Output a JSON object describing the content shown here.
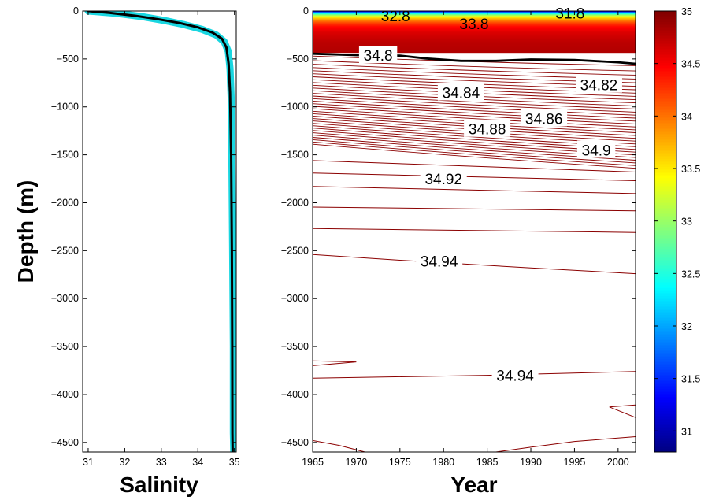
{
  "chart_data": [
    {
      "type": "line",
      "xlabel": "Salinity",
      "ylabel": "Depth (m)",
      "xlim": [
        30.85,
        35.05
      ],
      "ylim": [
        -4600,
        0
      ],
      "xticks": [
        "31",
        "32",
        "33",
        "34",
        "35"
      ],
      "yticks": [
        "0",
        "−500",
        "−1000",
        "−1500",
        "−2000",
        "−2500",
        "−3000",
        "−3500",
        "−4000",
        "−4500"
      ],
      "grid": false,
      "series": [
        {
          "style": "envelope",
          "color": "#19d6e0",
          "x": [
            31.0,
            31.8,
            32.5,
            33.1,
            33.6,
            34.1,
            34.5,
            34.72,
            34.83,
            34.88,
            34.91,
            34.93,
            34.95,
            34.97,
            34.97,
            34.98
          ],
          "y": [
            0,
            -25,
            -60,
            -100,
            -140,
            -190,
            -250,
            -320,
            -420,
            -600,
            -900,
            -1500,
            -2500,
            -3500,
            -4400,
            -4590
          ]
        },
        {
          "style": "mean",
          "color": "#000000",
          "x": [
            31.0,
            31.6,
            32.3,
            32.9,
            33.5,
            34.0,
            34.4,
            34.66,
            34.78,
            34.84,
            34.88,
            34.91,
            34.93,
            34.94,
            34.945,
            34.95
          ],
          "y": [
            0,
            -20,
            -50,
            -85,
            -125,
            -170,
            -225,
            -290,
            -380,
            -550,
            -850,
            -1500,
            -2500,
            -3500,
            -4400,
            -4590
          ]
        }
      ]
    },
    {
      "type": "heatmap",
      "xlabel": "Year",
      "xlim": [
        1965,
        2002
      ],
      "ylim": [
        -4600,
        0
      ],
      "xticks": [
        "1965",
        "1970",
        "1975",
        "1980",
        "1985",
        "1990",
        "1995",
        "2000"
      ],
      "yticks": [
        "0",
        "−500",
        "−1000",
        "−1500",
        "−2000",
        "−2500",
        "−3000",
        "−3500",
        "−4000",
        "−4500"
      ],
      "colormap": "jet",
      "clim": [
        30.8,
        35
      ],
      "surface_bands": [
        {
          "depth": 0,
          "value": 31.3
        },
        {
          "depth": -15,
          "value": 32.1
        },
        {
          "depth": -35,
          "value": 32.9
        },
        {
          "depth": -55,
          "value": 33.4
        },
        {
          "depth": -75,
          "value": 33.7
        },
        {
          "depth": -95,
          "value": 33.95
        },
        {
          "depth": -120,
          "value": 34.2
        },
        {
          "depth": -160,
          "value": 34.45
        },
        {
          "depth": -220,
          "value": 34.62
        },
        {
          "depth": -320,
          "value": 34.75
        },
        {
          "depth": -430,
          "value": 34.8
        }
      ],
      "contour_labels": [
        {
          "text": "32.8",
          "year": 1974.5,
          "depth": -50
        },
        {
          "text": "33.8",
          "year": 1983.5,
          "depth": -130
        },
        {
          "text": "31.8",
          "year": 1994.5,
          "depth": -20
        },
        {
          "text": "34.8",
          "year": 1972.5,
          "depth": -460
        },
        {
          "text": "34.84",
          "year": 1982,
          "depth": -850
        },
        {
          "text": "34.82",
          "year": 1997.8,
          "depth": -770
        },
        {
          "text": "34.86",
          "year": 1991.5,
          "depth": -1120
        },
        {
          "text": "34.88",
          "year": 1985,
          "depth": -1230
        },
        {
          "text": "34.9",
          "year": 1997.5,
          "depth": -1450
        },
        {
          "text": "34.92",
          "year": 1980,
          "depth": -1750
        },
        {
          "text": "34.94",
          "year": 1979.5,
          "depth": -2610
        },
        {
          "text": "34.94",
          "year": 1988.2,
          "depth": -3800
        }
      ],
      "highlight_contour": {
        "value": "34.8",
        "color": "#000000",
        "years": [
          1965,
          1970,
          1975,
          1978,
          1982,
          1986,
          1990,
          1995,
          2000,
          2002
        ],
        "depths": [
          -445,
          -460,
          -465,
          -495,
          -520,
          -520,
          -505,
          -510,
          -535,
          -550
        ]
      },
      "contour_color": "#8b0000",
      "contours_upper": {
        "count": 34,
        "left_range": [
          -470,
          -1390
        ],
        "right_range": [
          -570,
          -1640
        ]
      },
      "contours_deep": [
        {
          "years": [
            1965,
            2002
          ],
          "depths": [
            -1560,
            -1680
          ]
        },
        {
          "years": [
            1965,
            2002
          ],
          "depths": [
            -1690,
            -1770
          ]
        },
        {
          "years": [
            1965,
            2002
          ],
          "depths": [
            -1830,
            -1905
          ]
        },
        {
          "years": [
            1965,
            2002
          ],
          "depths": [
            -2045,
            -2085
          ]
        },
        {
          "years": [
            1965,
            2002
          ],
          "depths": [
            -2270,
            -2310
          ]
        },
        {
          "years": [
            1965,
            1975,
            1990,
            2002
          ],
          "depths": [
            -2540,
            -2600,
            -2680,
            -2740
          ]
        },
        {
          "years": [
            1965,
            1985,
            2002
          ],
          "depths": [
            -3830,
            -3800,
            -3760
          ]
        },
        {
          "years": [
            1965,
            1970,
            1965
          ],
          "depths": [
            -3650,
            -3660,
            -3700
          ]
        },
        {
          "years": [
            2002,
            1999,
            2002
          ],
          "depths": [
            -4110,
            -4130,
            -4240
          ]
        },
        {
          "years": [
            1965,
            1968,
            1971
          ],
          "depths": [
            -4480,
            -4530,
            -4600
          ]
        },
        {
          "years": [
            1986,
            1990,
            1995,
            2002
          ],
          "depths": [
            -4600,
            -4550,
            -4490,
            -4440
          ]
        }
      ]
    },
    {
      "type": "colorbar",
      "clim": [
        30.8,
        35
      ],
      "colormap": "jet",
      "ticks": [
        "35",
        "34.5",
        "34",
        "33.5",
        "33",
        "32.5",
        "32",
        "31.5",
        "31"
      ],
      "tick_values": [
        35,
        34.5,
        34,
        33.5,
        33,
        32.5,
        32,
        31.5,
        31
      ]
    }
  ]
}
